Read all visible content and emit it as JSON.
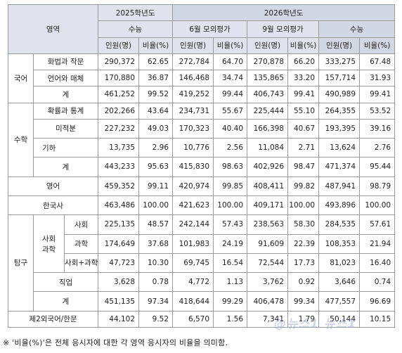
{
  "header": {
    "area": "영역",
    "y2025": "2025학년도",
    "y2026": "2026학년도",
    "suneung": "수능",
    "june": "6월 모의평가",
    "sept": "9월 모의평가",
    "suneung2026": "수능",
    "persons": "인원(명)",
    "ratio": "비율(%)"
  },
  "groups": {
    "korean": "국어",
    "math": "수학",
    "english": "영어",
    "history": "한국사",
    "inquiry": "탐구",
    "social_science": "사회\n과학",
    "lang2": "제2외국어/한문"
  },
  "rows": [
    {
      "label": "화법과 작문",
      "v": [
        "290,372",
        "62.65",
        "272,784",
        "64.70",
        "270,878",
        "66.20",
        "333,275",
        "67.48"
      ]
    },
    {
      "label": "언어와 매체",
      "v": [
        "170,880",
        "36.87",
        "146,468",
        "34.74",
        "135,865",
        "33.20",
        "157,714",
        "31.93"
      ]
    },
    {
      "label": "계",
      "v": [
        "461,252",
        "99.52",
        "419,252",
        "99.44",
        "406,743",
        "99.41",
        "490,989",
        "99.41"
      ]
    },
    {
      "label": "확률과 통계",
      "v": [
        "202,266",
        "43.64",
        "234,731",
        "55.67",
        "225,444",
        "55.10",
        "264,355",
        "53.52"
      ]
    },
    {
      "label": "미적분",
      "v": [
        "227,232",
        "49.03",
        "170,323",
        "40.40",
        "166,398",
        "40.67",
        "193,395",
        "39.16"
      ]
    },
    {
      "label": "기하",
      "v": [
        "13,735",
        "2.96",
        "10,776",
        "2.56",
        "11,084",
        "2.71",
        "13,624",
        "2.76"
      ]
    },
    {
      "label": "계",
      "v": [
        "443,233",
        "95.63",
        "415,830",
        "98.63",
        "402,926",
        "98.47",
        "471,374",
        "95.44"
      ]
    },
    {
      "label": "영어",
      "v": [
        "459,352",
        "99.11",
        "420,974",
        "99.85",
        "408,411",
        "99.82",
        "487,941",
        "98.79"
      ]
    },
    {
      "label": "한국사",
      "v": [
        "463,486",
        "100.00",
        "421,623",
        "100.00",
        "409,171",
        "100.00",
        "493,896",
        "100.00"
      ]
    },
    {
      "label": "사회",
      "v": [
        "225,135",
        "48.57",
        "242,144",
        "57.43",
        "238,563",
        "58.30",
        "284,535",
        "57.61"
      ]
    },
    {
      "label": "과학",
      "v": [
        "174,649",
        "37.68",
        "101,983",
        "24.19",
        "91,609",
        "22.39",
        "108,353",
        "21.94"
      ]
    },
    {
      "label": "사회+과학",
      "v": [
        "47,723",
        "10.30",
        "69,745",
        "16.54",
        "72,544",
        "17.73",
        "81,023",
        "16.40"
      ]
    },
    {
      "label": "직업",
      "v": [
        "3,628",
        "0.78",
        "4,772",
        "1.13",
        "3,762",
        "0.92",
        "3,646",
        "0.74"
      ]
    },
    {
      "label": "계",
      "v": [
        "451,135",
        "97.34",
        "418,644",
        "99.29",
        "406,478",
        "99.34",
        "477,557",
        "96.69"
      ]
    },
    {
      "label": "제2외국어/한문",
      "v": [
        "44,102",
        "9.52",
        "6,570",
        "1.56",
        "7,341",
        "1.79",
        "50,144",
        "10.15"
      ]
    }
  ],
  "footnote": "※ '비율(%)'은 전체 응시자에 대한 각 영역 응시자의 비율을 의미함.",
  "watermark": "@뉴스1 뉴스1"
}
